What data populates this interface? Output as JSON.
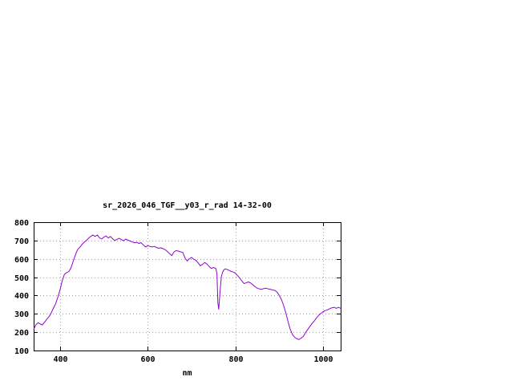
{
  "chart_data": {
    "type": "line",
    "title": "sr_2026_046_TGF__y03_r_rad 14-32-00",
    "xlabel": "nm",
    "ylabel": "",
    "xlim": [
      340,
      1040
    ],
    "ylim": [
      100,
      800
    ],
    "xticks": [
      400,
      600,
      800,
      1000
    ],
    "yticks": [
      100,
      200,
      300,
      400,
      500,
      600,
      700,
      800
    ],
    "grid": true,
    "legend": "none",
    "line_color": "#9400d3",
    "border_color": "#000000",
    "grid_color": "#a0a0a0",
    "series": [
      {
        "name": "sr_2026_046_TGF__y03_r_rad",
        "points": [
          [
            340,
            215
          ],
          [
            345,
            240
          ],
          [
            350,
            252
          ],
          [
            355,
            245
          ],
          [
            360,
            240
          ],
          [
            365,
            255
          ],
          [
            370,
            270
          ],
          [
            375,
            285
          ],
          [
            380,
            305
          ],
          [
            385,
            330
          ],
          [
            390,
            355
          ],
          [
            395,
            390
          ],
          [
            400,
            430
          ],
          [
            405,
            480
          ],
          [
            410,
            515
          ],
          [
            415,
            525
          ],
          [
            420,
            530
          ],
          [
            425,
            550
          ],
          [
            430,
            585
          ],
          [
            435,
            620
          ],
          [
            440,
            650
          ],
          [
            445,
            662
          ],
          [
            450,
            678
          ],
          [
            455,
            690
          ],
          [
            460,
            700
          ],
          [
            465,
            712
          ],
          [
            470,
            722
          ],
          [
            475,
            730
          ],
          [
            480,
            722
          ],
          [
            485,
            730
          ],
          [
            490,
            715
          ],
          [
            495,
            708
          ],
          [
            500,
            718
          ],
          [
            505,
            725
          ],
          [
            510,
            714
          ],
          [
            515,
            722
          ],
          [
            520,
            710
          ],
          [
            525,
            700
          ],
          [
            530,
            707
          ],
          [
            535,
            712
          ],
          [
            540,
            705
          ],
          [
            545,
            698
          ],
          [
            550,
            708
          ],
          [
            555,
            702
          ],
          [
            560,
            697
          ],
          [
            565,
            692
          ],
          [
            570,
            688
          ],
          [
            575,
            690
          ],
          [
            580,
            684
          ],
          [
            585,
            688
          ],
          [
            590,
            676
          ],
          [
            595,
            665
          ],
          [
            600,
            672
          ],
          [
            605,
            668
          ],
          [
            610,
            665
          ],
          [
            615,
            668
          ],
          [
            620,
            662
          ],
          [
            625,
            658
          ],
          [
            630,
            660
          ],
          [
            635,
            655
          ],
          [
            640,
            650
          ],
          [
            645,
            640
          ],
          [
            650,
            628
          ],
          [
            655,
            618
          ],
          [
            660,
            638
          ],
          [
            665,
            645
          ],
          [
            670,
            642
          ],
          [
            675,
            638
          ],
          [
            680,
            635
          ],
          [
            685,
            605
          ],
          [
            690,
            588
          ],
          [
            695,
            600
          ],
          [
            700,
            608
          ],
          [
            705,
            598
          ],
          [
            710,
            592
          ],
          [
            715,
            578
          ],
          [
            720,
            562
          ],
          [
            725,
            570
          ],
          [
            730,
            580
          ],
          [
            735,
            572
          ],
          [
            740,
            558
          ],
          [
            745,
            548
          ],
          [
            750,
            553
          ],
          [
            755,
            548
          ],
          [
            758,
            520
          ],
          [
            760,
            360
          ],
          [
            762,
            325
          ],
          [
            765,
            420
          ],
          [
            768,
            505
          ],
          [
            772,
            535
          ],
          [
            776,
            545
          ],
          [
            780,
            543
          ],
          [
            785,
            538
          ],
          [
            790,
            532
          ],
          [
            795,
            528
          ],
          [
            800,
            522
          ],
          [
            805,
            508
          ],
          [
            810,
            495
          ],
          [
            815,
            478
          ],
          [
            820,
            465
          ],
          [
            825,
            470
          ],
          [
            830,
            474
          ],
          [
            835,
            468
          ],
          [
            840,
            458
          ],
          [
            845,
            448
          ],
          [
            850,
            440
          ],
          [
            855,
            436
          ],
          [
            860,
            434
          ],
          [
            865,
            438
          ],
          [
            870,
            440
          ],
          [
            875,
            436
          ],
          [
            880,
            434
          ],
          [
            885,
            430
          ],
          [
            890,
            428
          ],
          [
            895,
            418
          ],
          [
            900,
            400
          ],
          [
            905,
            378
          ],
          [
            910,
            345
          ],
          [
            915,
            305
          ],
          [
            920,
            258
          ],
          [
            925,
            215
          ],
          [
            930,
            188
          ],
          [
            935,
            172
          ],
          [
            940,
            164
          ],
          [
            945,
            160
          ],
          [
            950,
            168
          ],
          [
            955,
            178
          ],
          [
            960,
            198
          ],
          [
            965,
            215
          ],
          [
            970,
            232
          ],
          [
            975,
            248
          ],
          [
            980,
            262
          ],
          [
            985,
            278
          ],
          [
            990,
            292
          ],
          [
            995,
            302
          ],
          [
            1000,
            312
          ],
          [
            1005,
            318
          ],
          [
            1010,
            322
          ],
          [
            1015,
            328
          ],
          [
            1020,
            333
          ],
          [
            1025,
            336
          ],
          [
            1030,
            330
          ],
          [
            1035,
            336
          ],
          [
            1040,
            330
          ]
        ]
      }
    ]
  }
}
